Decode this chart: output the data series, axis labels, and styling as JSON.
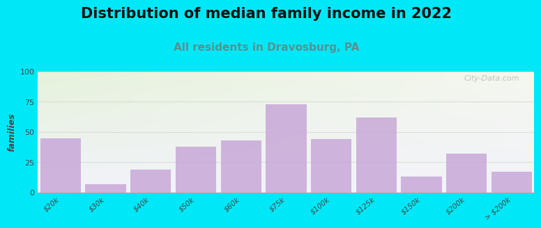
{
  "title": "Distribution of median family income in 2022",
  "subtitle": "All residents in Dravosburg, PA",
  "categories": [
    "$20k",
    "$30k",
    "$40k",
    "$50k",
    "$60k",
    "$75k",
    "$100k",
    "$125k",
    "$150k",
    "$200k",
    "> $200k"
  ],
  "values": [
    45,
    7,
    19,
    38,
    43,
    73,
    44,
    62,
    13,
    32,
    17
  ],
  "bar_color": "#c8a8d8",
  "bar_edge_color": "none",
  "ylabel": "families",
  "ylim": [
    0,
    100
  ],
  "yticks": [
    0,
    25,
    50,
    75,
    100
  ],
  "background_outer": "#00e8f8",
  "title_fontsize": 15,
  "subtitle_fontsize": 11,
  "subtitle_color": "#5a9090",
  "watermark": "City-Data.com",
  "grid_color": "#d0d8c8",
  "grid_alpha": 0.7,
  "bar_width": 0.9,
  "bar_alpha": 0.85,
  "bg_color_top_left": "#e8f0e0",
  "bg_color_right": "#f8f8f0",
  "bg_color_bottom": "#eeeef8"
}
